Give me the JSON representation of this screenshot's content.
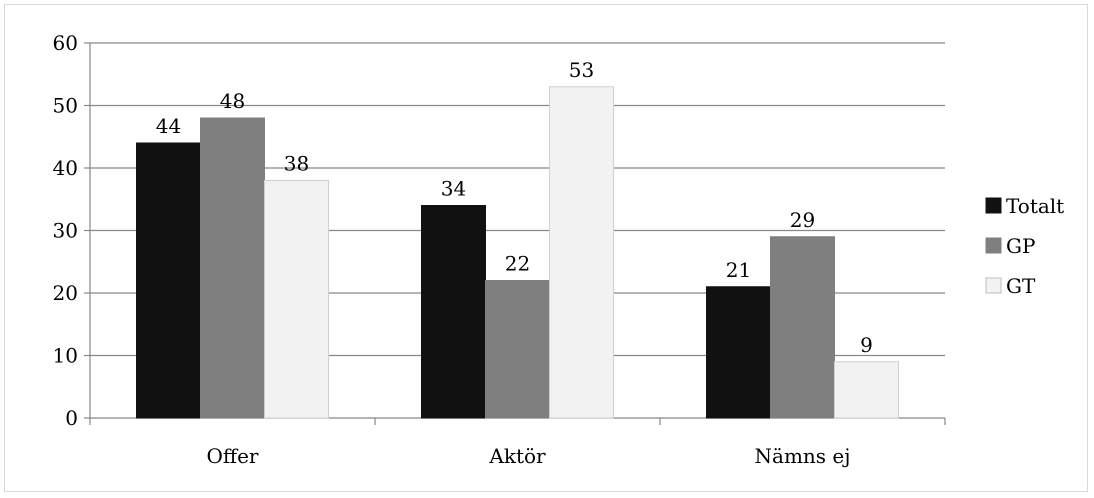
{
  "chart_data": {
    "type": "bar",
    "categories": [
      "Offer",
      "Aktör",
      "Nämns ej"
    ],
    "series": [
      {
        "name": "Totalt",
        "values": [
          44,
          34,
          21
        ],
        "color": "#111111"
      },
      {
        "name": "GP",
        "values": [
          48,
          22,
          29
        ],
        "color": "#7f7f7f"
      },
      {
        "name": "GT",
        "values": [
          38,
          53,
          9
        ],
        "color": "#f2f2f2"
      }
    ],
    "ylim": [
      0,
      60
    ],
    "yticks": [
      0,
      10,
      20,
      30,
      40,
      50,
      60
    ],
    "grid": true,
    "legend": "right",
    "title": "",
    "xlabel": "",
    "ylabel": ""
  }
}
